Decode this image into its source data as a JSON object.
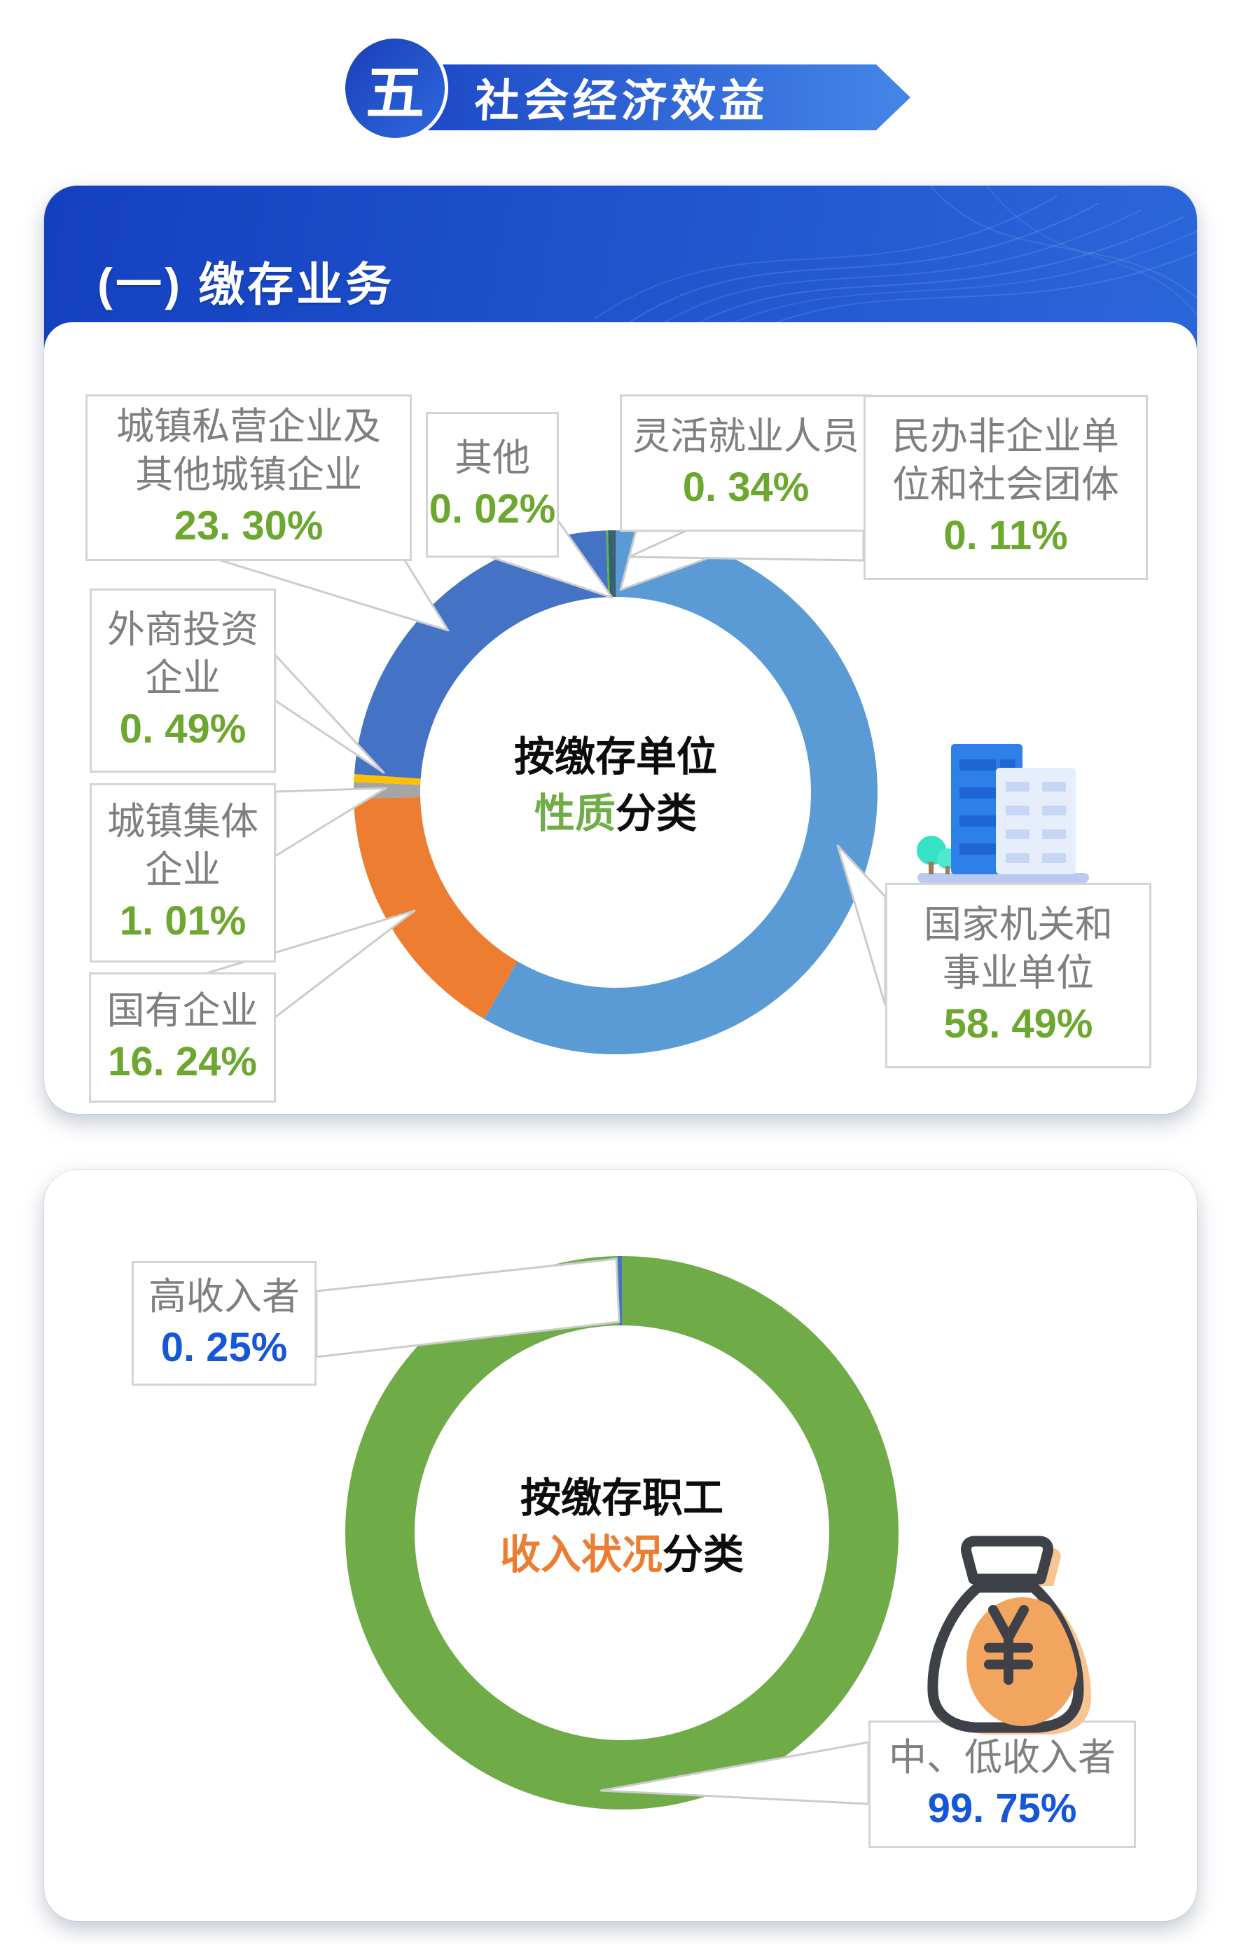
{
  "banner": {
    "index": "五",
    "title": "社会经济效益",
    "circle_color": "#1a3fb8",
    "bar_colors": [
      "#1d48c6",
      "#4586e8"
    ]
  },
  "card1": {
    "header": "(一) 缴存业务",
    "header_colors": [
      "#1440c0",
      "#2e6bdc"
    ]
  },
  "icons": {
    "buildings": "government-buildings-icon",
    "money_bag": "money-bag-icon"
  },
  "chart_data": [
    {
      "type": "pie",
      "donut": true,
      "title": "按缴存单位性质分类",
      "center": {
        "line1": "按缴存单位",
        "highlight": "性质",
        "rest": "分类",
        "highlight_color": "#70ad47"
      },
      "value_color": "#6ca82f",
      "legend": "none",
      "slices": [
        {
          "name": "国家机关和事业单位",
          "name_lines": [
            "国家机关和",
            "事业单位"
          ],
          "value": 58.49,
          "display": "58. 49%",
          "color": "#5B9BD5"
        },
        {
          "name": "国有企业",
          "name_lines": [
            "国有企业"
          ],
          "value": 16.24,
          "display": "16. 24%",
          "color": "#ED7D31"
        },
        {
          "name": "城镇集体企业",
          "name_lines": [
            "城镇集体",
            "企业"
          ],
          "value": 1.01,
          "display": "1. 01%",
          "color": "#A5A5A5"
        },
        {
          "name": "外商投资企业",
          "name_lines": [
            "外商投资",
            "企业"
          ],
          "value": 0.49,
          "display": "0. 49%",
          "color": "#FFC000"
        },
        {
          "name": "城镇私营企业及其他城镇企业",
          "name_lines": [
            "城镇私营企业及",
            "其他城镇企业"
          ],
          "value": 23.3,
          "display": "23. 30%",
          "color": "#4472C4"
        },
        {
          "name": "其他",
          "name_lines": [
            "其他"
          ],
          "value": 0.02,
          "display": "0. 02%",
          "color": "#70AD47"
        },
        {
          "name": "灵活就业人员",
          "name_lines": [
            "灵活就业人员"
          ],
          "value": 0.34,
          "display": "0. 34%",
          "color": "#2E6470"
        },
        {
          "name": "民办非企业单位和社会团体",
          "name_lines": [
            "民办非企业单",
            "位和社会团体"
          ],
          "value": 0.11,
          "display": "0. 11%",
          "color": "#44546A"
        }
      ]
    },
    {
      "type": "pie",
      "donut": true,
      "title": "按缴存职工收入状况分类",
      "center": {
        "line1": "按缴存职工",
        "highlight": "收入状况",
        "rest": "分类",
        "highlight_color": "#ed7d31"
      },
      "value_color": "#1656d8",
      "legend": "none",
      "slices": [
        {
          "name": "中、低收入者",
          "name_lines": [
            "中、低收入者"
          ],
          "value": 99.75,
          "display": "99. 75%",
          "color": "#6FAC47"
        },
        {
          "name": "高收入者",
          "name_lines": [
            "高收入者"
          ],
          "value": 0.25,
          "display": "0. 25%",
          "color": "#4472C4"
        }
      ]
    }
  ]
}
